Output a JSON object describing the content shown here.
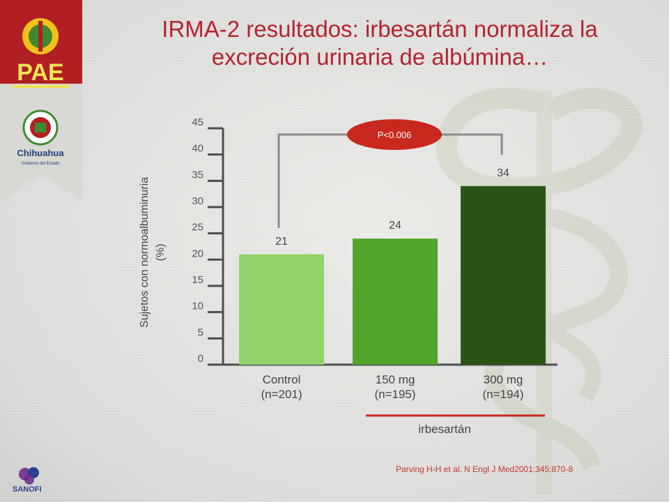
{
  "title": {
    "line1": "IRMA-2 resultados: irbesartán normaliza la",
    "line2": "excreción urinaria de albúmina…"
  },
  "chart_data": {
    "type": "bar",
    "categories": [
      {
        "line1": "Control",
        "line2": "(n=201)"
      },
      {
        "line1": "150 mg",
        "line2": "(n=195)"
      },
      {
        "line1": "300 mg",
        "line2": "(n=194)"
      }
    ],
    "values": [
      21,
      24,
      34
    ],
    "value_labels": [
      "21",
      "24",
      "34"
    ],
    "bar_colors": [
      "#93d46a",
      "#52a52a",
      "#2c5317"
    ],
    "ylabel": {
      "line1": "Sujetos con normoalbuminuria",
      "line2": "(%)"
    },
    "ylim": [
      0,
      45
    ],
    "yticks": [
      0,
      5,
      10,
      15,
      20,
      25,
      30,
      35,
      40,
      45
    ],
    "annotation": {
      "text": "P<0.006",
      "color": "#c8281e"
    },
    "group_label": "irbesartán",
    "grid": false,
    "legend": "none"
  },
  "logos": {
    "pae": "PAE",
    "chihuahua": "Chihuahua",
    "chihuahua_sub": "Gobierno del Estado",
    "sanofi": "SANOFI"
  },
  "citation": "Parving H-H et al. N Engl J Med2001;345:870-8"
}
